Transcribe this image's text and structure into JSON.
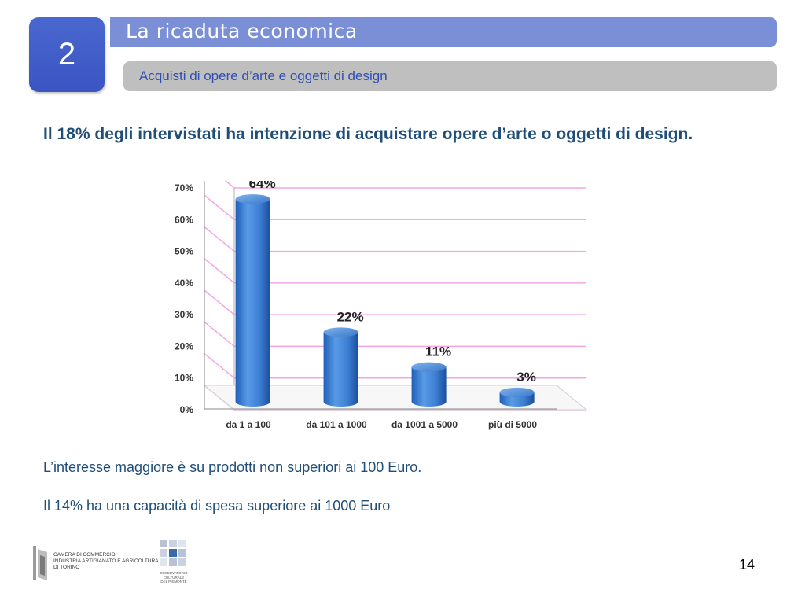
{
  "header": {
    "section_number": "2",
    "title": "La ricaduta economica",
    "subtitle": "Acquisti di opere d’arte e oggetti di design"
  },
  "headline": "Il 18% degli intervistati ha intenzione di acquistare opere d’arte o oggetti di design.",
  "notes": [
    "L’interesse maggiore è su prodotti non superiori ai 100 Euro.",
    "Il 14% ha una capacità di spesa superiore ai 1000 Euro"
  ],
  "chart_data": {
    "type": "bar",
    "categories": [
      "da 1 a 100",
      "da 101 a 1000",
      "da 1001 a 5000",
      "più di 5000"
    ],
    "values": [
      64,
      22,
      11,
      3
    ],
    "data_labels": [
      "64%",
      "22%",
      "11%",
      "3%"
    ],
    "y_ticks": [
      "0%",
      "10%",
      "20%",
      "30%",
      "40%",
      "50%",
      "60%",
      "70%"
    ],
    "ylim": [
      0,
      70
    ],
    "grid": true,
    "colors": {
      "bar": "#3f7fd4",
      "grid": "#f2a6e6"
    }
  },
  "footer": {
    "logo1_text": [
      "Camera di commercio",
      "industria artigianato e agricoltura",
      "di Torino"
    ],
    "logo2_text": [
      "Osservatorio",
      "culturale",
      "del Piemonte"
    ],
    "page_number": "14"
  }
}
